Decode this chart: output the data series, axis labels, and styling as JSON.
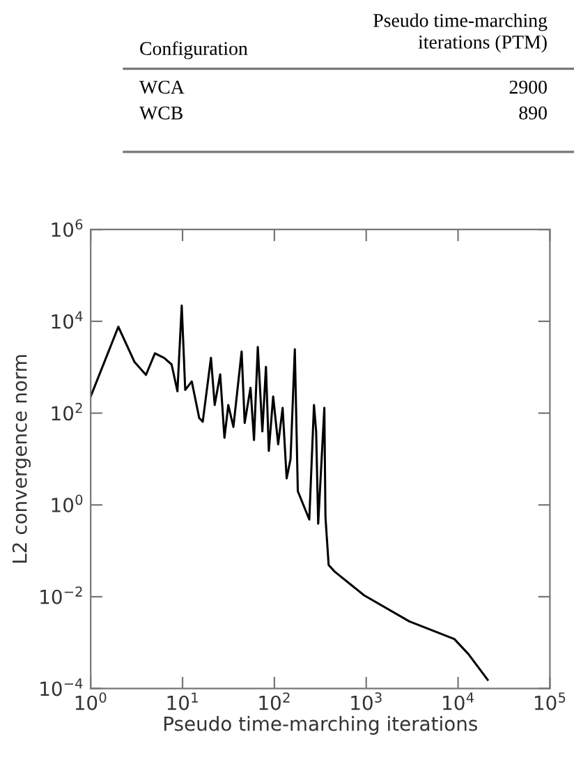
{
  "chart_data": [
    {
      "type": "other",
      "categories": [
        "WCA",
        "WCB"
      ],
      "values": [
        2900,
        890
      ],
      "data_labels": true,
      "annotations": [
        "Configuration",
        "Pseudo time-marching\niterations (PTM)"
      ]
    },
    {
      "type": "line",
      "log": "xy",
      "color": "#000000",
      "xlabel": "Pseudo time-marching iterations",
      "ylabel": "L2 convergence norm",
      "x": [
        1,
        2,
        3,
        4,
        5,
        6.3,
        7.6,
        8.8,
        9.8,
        10.7,
        12.6,
        15.2,
        16.6,
        20.4,
        22.4,
        25.7,
        28.6,
        31.5,
        35.8,
        44,
        47.5,
        55,
        60,
        66,
        74,
        81,
        87,
        97,
        110,
        123,
        136,
        150,
        167,
        180,
        240,
        270,
        285,
        300,
        350,
        360,
        390,
        455,
        950,
        2950,
        9100,
        13000,
        21000
      ],
      "values": [
        230,
        7600,
        1300,
        680,
        2000,
        1600,
        1150,
        300,
        22000,
        320,
        490,
        78,
        65,
        1600,
        150,
        700,
        29,
        150,
        50,
        2200,
        61,
        355,
        26,
        2750,
        40,
        1020,
        15,
        230,
        21,
        130,
        3.8,
        10,
        2450,
        2,
        0.48,
        150,
        40,
        0.39,
        130,
        0.54,
        0.049,
        0.035,
        0.0107,
        0.0029,
        0.0012,
        0.00056,
        0.000155
      ],
      "xlim": [
        1,
        100000
      ],
      "ylim": [
        0.0001,
        1000000
      ],
      "xticks": [
        {
          "value": 1,
          "label": "10$^{0}$"
        },
        {
          "value": 10,
          "label": "10$^{1}$"
        },
        {
          "value": 100,
          "label": "10$^{2}$"
        },
        {
          "value": 1000,
          "label": "10$^{3}$"
        },
        {
          "value": 10000,
          "label": "10$^{4}$"
        },
        {
          "value": 100000,
          "label": "10$^{5}$"
        }
      ],
      "yticks": [
        {
          "value": 0.0001,
          "label": "10$^{−4}$"
        },
        {
          "value": 0.01,
          "label": "10$^{−2}$"
        },
        {
          "value": 1,
          "label": "10$^{0}$"
        },
        {
          "value": 100,
          "label": "10$^{2}$"
        },
        {
          "value": 10000,
          "label": "10$^{4}$"
        },
        {
          "value": 1000000,
          "label": "10$^{6}$"
        }
      ],
      "grid": false,
      "legend": false,
      "line_style": "solid",
      "marker": "none"
    }
  ]
}
